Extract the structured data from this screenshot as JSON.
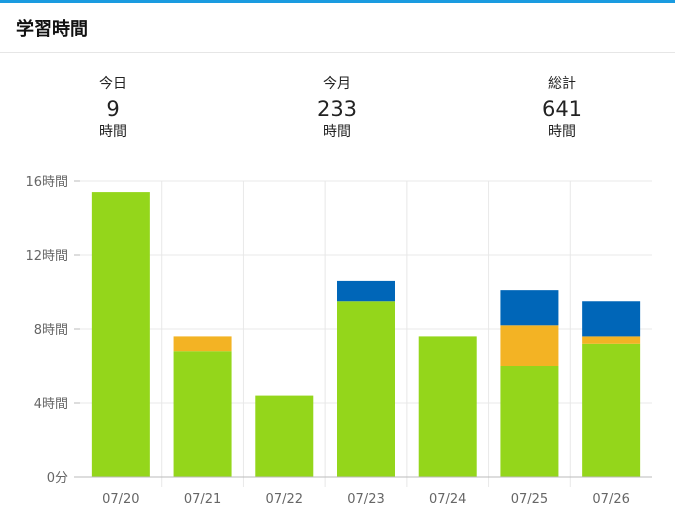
{
  "header": {
    "title": "学習時間"
  },
  "stats": [
    {
      "label": "今日",
      "value": "9",
      "unit": "時間"
    },
    {
      "label": "今月",
      "value": "233",
      "unit": "時間"
    },
    {
      "label": "総計",
      "value": "641",
      "unit": "時間"
    }
  ],
  "chart_data": {
    "type": "bar",
    "stacked": true,
    "categories": [
      "07/20",
      "07/21",
      "07/22",
      "07/23",
      "07/24",
      "07/25",
      "07/26"
    ],
    "series": [
      {
        "color": "#94d61b",
        "values": [
          15.4,
          6.8,
          4.4,
          9.5,
          7.6,
          6.0,
          7.2
        ]
      },
      {
        "color": "#f3b324",
        "values": [
          0,
          0.8,
          0,
          0,
          0,
          2.2,
          0.4
        ]
      },
      {
        "color": "#0066b8",
        "values": [
          0,
          0,
          0,
          1.1,
          0,
          1.9,
          1.9
        ]
      }
    ],
    "yticks": [
      {
        "value": 0,
        "label": "0分"
      },
      {
        "value": 4,
        "label": "4時間"
      },
      {
        "value": 8,
        "label": "8時間"
      },
      {
        "value": 12,
        "label": "12時間"
      },
      {
        "value": 16,
        "label": "16時間"
      }
    ],
    "ylim": [
      0,
      16
    ],
    "grid": true
  }
}
